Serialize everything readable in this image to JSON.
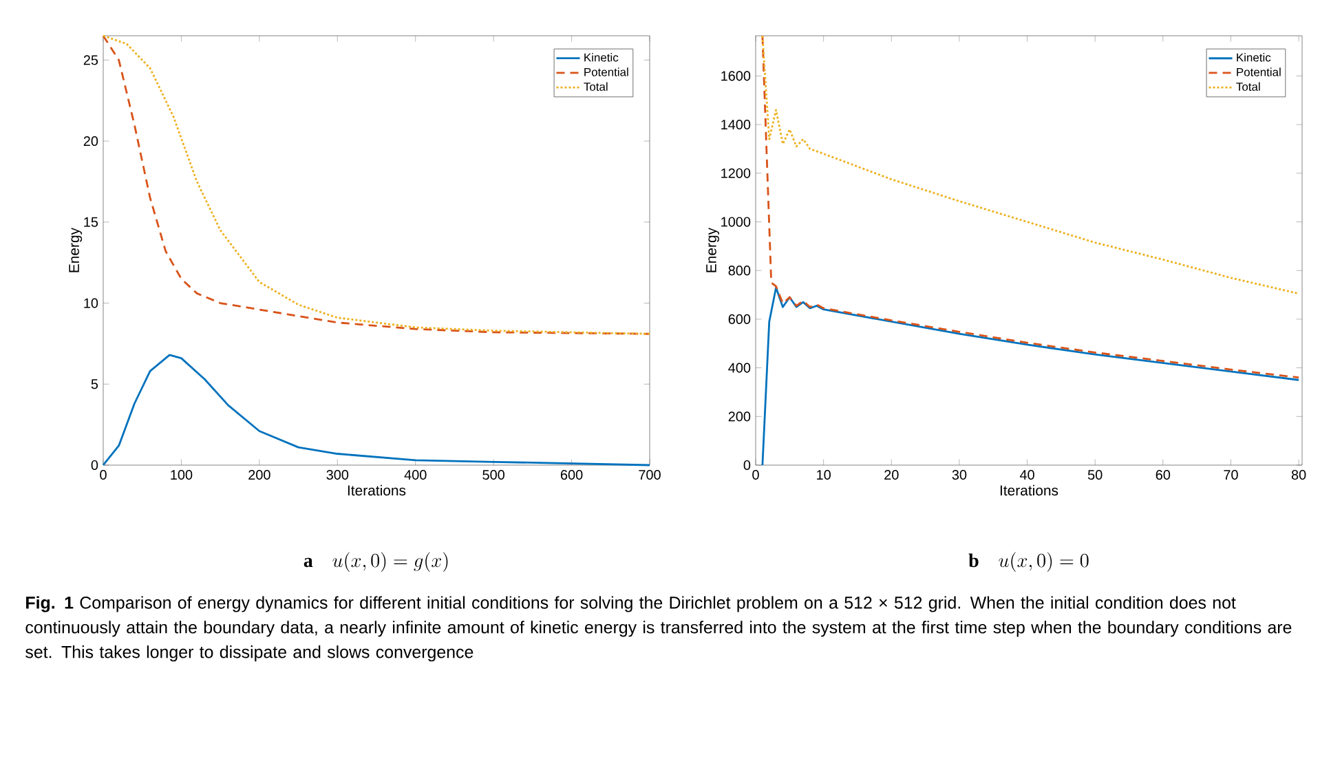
{
  "chart_data": [
    {
      "type": "line",
      "title": "a",
      "subtitle": "u(x,0) = g(x)",
      "xlabel": "Iterations",
      "ylabel": "Energy",
      "xlim": [
        0,
        700
      ],
      "ylim": [
        0,
        26.5
      ],
      "xticks": [
        0,
        100,
        200,
        300,
        400,
        500,
        600,
        700
      ],
      "yticks": [
        0,
        5,
        10,
        15,
        20,
        25
      ],
      "legend": "top right",
      "grid": false,
      "annotations": [
        "**Fig. 1** Comparison of energy dynamics for different initial conditions for solving the Dirichlet problem on a 512 × 512 grid. When the initial condition does not continuously attain the boundary data, a nearly infinite amount of kinetic energy is transferred into the system at the first time step when the boundary conditions are set. This takes longer to dissipate and slows convergence"
      ],
      "series": [
        {
          "name": "Kinetic",
          "color": "#0072bd",
          "line_style": "solid",
          "x": [
            0,
            20,
            40,
            60,
            85,
            100,
            130,
            160,
            200,
            250,
            300,
            400,
            500,
            600,
            700
          ],
          "values": [
            0,
            1.2,
            3.8,
            5.8,
            6.8,
            6.6,
            5.3,
            3.7,
            2.1,
            1.1,
            0.7,
            0.3,
            0.2,
            0.1,
            0
          ]
        },
        {
          "name": "Potential",
          "color": "#d95319",
          "line_style": "dashed",
          "x": [
            0,
            20,
            40,
            60,
            80,
            100,
            120,
            150,
            200,
            300,
            400,
            500,
            700
          ],
          "values": [
            26.5,
            25,
            21,
            16.5,
            13.2,
            11.5,
            10.6,
            10,
            9.6,
            8.8,
            8.4,
            8.2,
            8.1
          ]
        },
        {
          "name": "Total",
          "color": "#edb120",
          "line_style": "dotted",
          "x": [
            0,
            30,
            60,
            90,
            120,
            150,
            200,
            250,
            300,
            400,
            500,
            700
          ],
          "values": [
            26.5,
            26,
            24.5,
            21.5,
            17.5,
            14.5,
            11.3,
            9.9,
            9.1,
            8.5,
            8.3,
            8.1
          ]
        }
      ]
    },
    {
      "type": "line",
      "title": "b",
      "subtitle": "u(x,0) = 0",
      "xlabel": "Iterations",
      "ylabel": "Energy",
      "xlim": [
        0,
        80.5
      ],
      "ylim": [
        0,
        1765
      ],
      "xticks": [
        0,
        10,
        20,
        30,
        40,
        50,
        60,
        70,
        80
      ],
      "yticks": [
        0,
        200,
        400,
        600,
        800,
        1000,
        1200,
        1400,
        1600
      ],
      "legend": "top right",
      "grid": false,
      "series": [
        {
          "name": "Kinetic",
          "color": "#0072bd",
          "line_style": "solid",
          "x": [
            1,
            2,
            3,
            4,
            5,
            6,
            7,
            8,
            9,
            10,
            20,
            30,
            40,
            50,
            60,
            70,
            80
          ],
          "values": [
            0,
            590,
            730,
            650,
            690,
            650,
            670,
            645,
            655,
            640,
            590,
            540,
            495,
            455,
            420,
            385,
            350
          ]
        },
        {
          "name": "Potential",
          "color": "#d95319",
          "line_style": "dashed",
          "x": [
            1,
            2.3,
            3,
            4,
            5,
            6,
            7,
            8,
            9,
            10,
            20,
            30,
            40,
            50,
            60,
            70,
            80
          ],
          "values": [
            1765,
            750,
            735,
            665,
            690,
            655,
            675,
            650,
            660,
            645,
            595,
            548,
            503,
            463,
            428,
            393,
            360
          ]
        },
        {
          "name": "Total",
          "color": "#edb120",
          "line_style": "dotted",
          "x": [
            1,
            2,
            3,
            4,
            5,
            6,
            7,
            8,
            10,
            20,
            30,
            40,
            50,
            60,
            70,
            80
          ],
          "values": [
            1765,
            1340,
            1460,
            1320,
            1380,
            1310,
            1340,
            1300,
            1280,
            1175,
            1085,
            1000,
            915,
            845,
            770,
            705
          ]
        }
      ]
    }
  ]
}
